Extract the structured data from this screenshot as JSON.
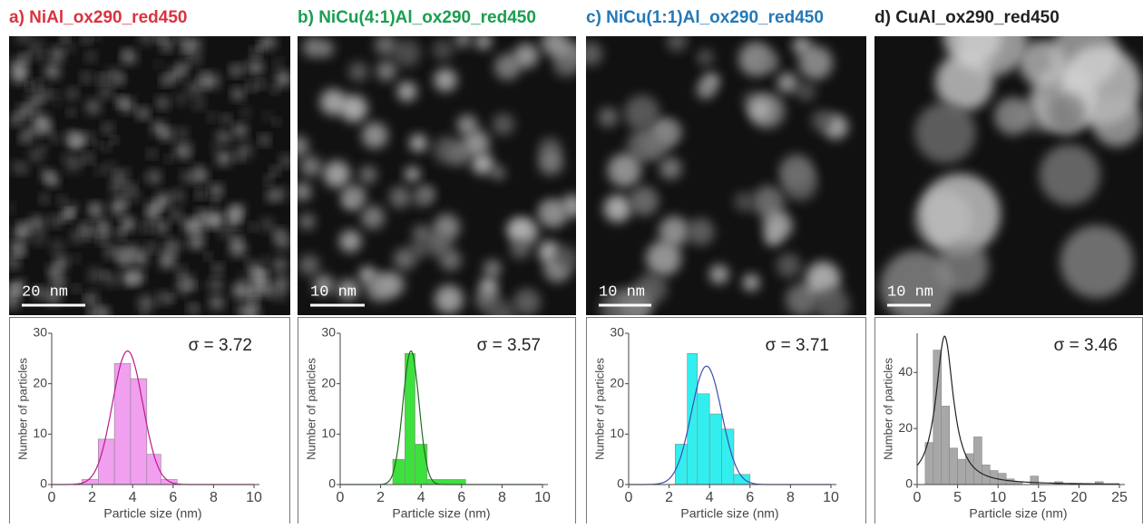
{
  "chart_data": [
    {
      "type": "histogram",
      "title": "a) NiAl_ox290_red450",
      "title_color": "#d9333f",
      "scale_bar": "20 nm",
      "sigma_label": "σ = 3.72",
      "xlabel": "Particle size (nm)",
      "ylabel": "Number of particles",
      "bins": [
        1.5,
        2.3,
        3.1,
        3.9,
        4.7,
        5.4,
        6.2
      ],
      "values": [
        1,
        9,
        24,
        21,
        6,
        1
      ],
      "color": "#f0a0ee",
      "fit": {
        "shape": "gaussian",
        "center": 3.75,
        "width": 0.75,
        "peak": 26.5,
        "color": "#c2188f"
      },
      "xlim": [
        0,
        10
      ],
      "ylim": [
        0,
        30
      ],
      "xticks": [
        0,
        2,
        4,
        6,
        8,
        10
      ],
      "yticks": [
        0,
        10,
        20,
        30
      ]
    },
    {
      "type": "histogram",
      "title": "b) NiCu(4:1)Al_ox290_red450",
      "title_color": "#1a9e50",
      "scale_bar": "10 nm",
      "sigma_label": "σ = 3.57",
      "xlabel": "Particle size (nm)",
      "ylabel": "Number of particles",
      "bins": [
        2.6,
        3.2,
        3.7,
        4.3,
        6.2
      ],
      "values": [
        5,
        26,
        8,
        1
      ],
      "color": "#3ee03e",
      "fit": {
        "shape": "gaussian",
        "center": 3.5,
        "width": 0.4,
        "peak": 26.5,
        "color": "#1b6e1b"
      },
      "xlim": [
        0,
        10
      ],
      "ylim": [
        0,
        30
      ],
      "xticks": [
        0,
        2,
        4,
        6,
        8,
        10
      ],
      "yticks": [
        0,
        10,
        20,
        30
      ]
    },
    {
      "type": "histogram",
      "title": "c) NiCu(1:1)Al_ox290_red450",
      "title_color": "#2479b8",
      "scale_bar": "10 nm",
      "sigma_label": "σ = 3.71",
      "xlabel": "Particle size (nm)",
      "ylabel": "Number of particles",
      "bins": [
        2.3,
        2.9,
        3.4,
        4.0,
        4.6,
        5.2,
        6.0
      ],
      "values": [
        8,
        26,
        18,
        14,
        11,
        2
      ],
      "color": "#33eeee",
      "fit": {
        "shape": "gaussian",
        "center": 3.85,
        "width": 0.75,
        "peak": 23.5,
        "color": "#3a4fb0"
      },
      "xlim": [
        0,
        10
      ],
      "ylim": [
        0,
        30
      ],
      "xticks": [
        0,
        2,
        4,
        6,
        8,
        10
      ],
      "yticks": [
        0,
        10,
        20,
        30
      ]
    },
    {
      "type": "histogram",
      "title": "d) CuAl_ox290_red450",
      "title_color": "#222222",
      "scale_bar": "10 nm",
      "sigma_label": "σ = 3.46",
      "xlabel": "Particle size (nm)",
      "ylabel": "Number of particles",
      "bins": [
        1,
        2,
        3,
        4,
        5,
        6,
        7,
        8,
        9,
        10,
        11,
        12,
        13,
        14,
        15,
        16,
        17,
        18,
        19,
        20,
        21,
        22,
        23
      ],
      "values": [
        15,
        48,
        28,
        13,
        9,
        11,
        17,
        7,
        5,
        4,
        2,
        1,
        0,
        3,
        0,
        0,
        1,
        0,
        0,
        0,
        0,
        1
      ],
      "color": "#a8a8a8",
      "fit": {
        "shape": "lorentzian",
        "center": 3.4,
        "width": 1.3,
        "peak": 53,
        "color": "#222222"
      },
      "xlim": [
        0,
        25
      ],
      "ylim": [
        0,
        54
      ],
      "xticks": [
        0,
        5,
        10,
        15,
        20,
        25
      ],
      "yticks": [
        0,
        20,
        40
      ]
    }
  ]
}
